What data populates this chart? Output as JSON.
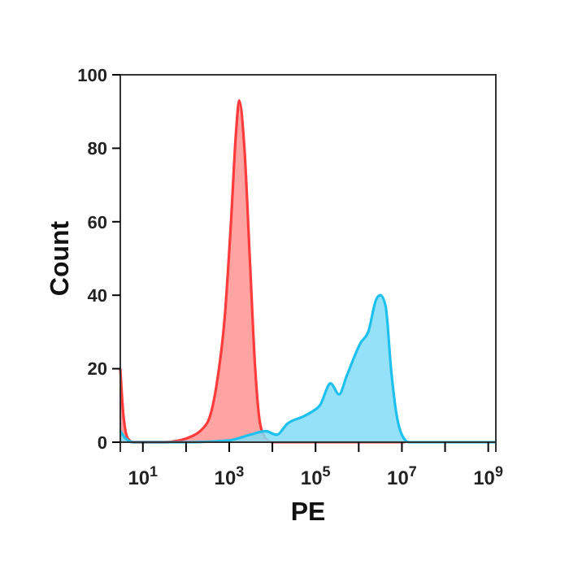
{
  "chart_data": {
    "type": "area",
    "xlabel": "PE",
    "ylabel": "Count",
    "log": "x",
    "grid": false,
    "xlim": [
      3,
      1500000000
    ],
    "ylim": [
      0,
      100
    ],
    "xticks": [
      {
        "value": 10,
        "label": "10$^{1}$"
      },
      {
        "value": 100,
        "label": null
      },
      {
        "value": 1000,
        "label": "10$^{3}$"
      },
      {
        "value": 10000,
        "label": null
      },
      {
        "value": 100000,
        "label": "10$^{5}$"
      },
      {
        "value": 1000000,
        "label": null
      },
      {
        "value": 10000000,
        "label": "10$^{7}$"
      },
      {
        "value": 100000000,
        "label": null
      },
      {
        "value": 1000000000,
        "label": "10$^{9}$"
      }
    ],
    "yticks": [
      0,
      20,
      40,
      60,
      80,
      100
    ],
    "series": [
      {
        "color": "#ff3b3b",
        "x": [
          3,
          3.5,
          4.5,
          6,
          30,
          100,
          300,
          500,
          800,
          1100,
          1450,
          1700,
          2250,
          3000,
          4000,
          5200,
          7000,
          10000,
          100000,
          1000000,
          12000000
        ],
        "values": [
          20,
          8,
          1,
          0,
          0,
          1,
          5,
          15,
          35,
          60,
          85,
          93,
          80,
          50,
          20,
          5,
          1,
          0,
          0,
          0,
          0
        ]
      },
      {
        "color": "#1ec0ee",
        "x": [
          3,
          4,
          6,
          100,
          1000,
          3000,
          7000,
          12600,
          22000,
          52000,
          75000,
          126000,
          224000,
          350000,
          525000,
          1100000,
          1660000,
          2570000,
          3200000,
          4200000,
          5600000,
          7400000,
          10000000,
          14500000,
          100000000,
          1500000000
        ],
        "values": [
          3,
          1,
          0,
          0,
          0.5,
          2,
          3,
          2,
          5,
          7,
          8,
          10,
          16,
          13,
          18,
          27,
          30,
          39,
          40,
          37,
          20,
          8,
          2,
          0,
          0,
          0
        ]
      }
    ]
  }
}
